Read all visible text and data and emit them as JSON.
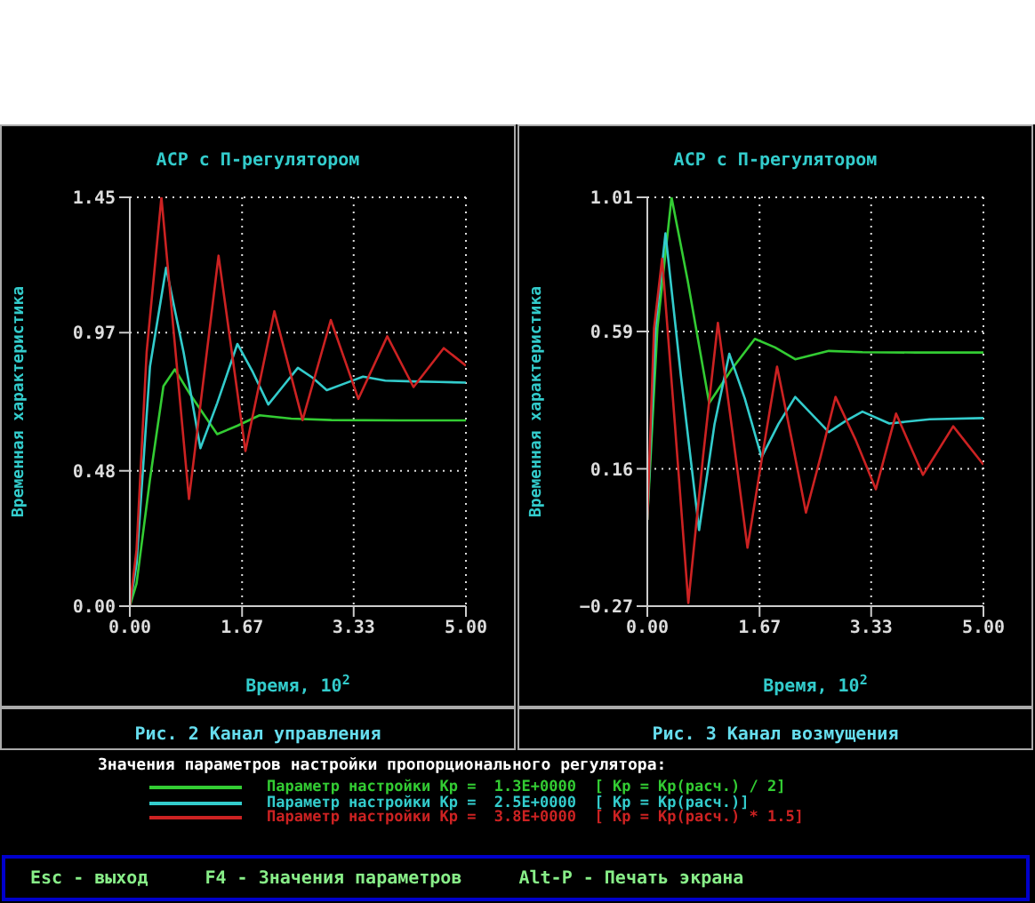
{
  "chart_data": [
    {
      "type": "line",
      "title": "АСР с П-регулятором",
      "xlabel": "Время, 10$^{2}$",
      "ylabel": "Временная характеристика",
      "xlim": [
        0,
        5
      ],
      "xticks": [
        {
          "value": 0,
          "label": "0.00"
        },
        {
          "value": 1.67,
          "label": "1.67"
        },
        {
          "value": 3.33,
          "label": "3.33"
        },
        {
          "value": 5,
          "label": "5.00"
        }
      ],
      "ylim": [
        0,
        1.45
      ],
      "yticks": [
        {
          "value": 0,
          "label": "0.00"
        },
        {
          "value": 0.48,
          "label": "0.48"
        },
        {
          "value": 0.97,
          "label": "0.97"
        },
        {
          "value": 1.45,
          "label": "1.45"
        }
      ],
      "grid": true,
      "legend": "bottom",
      "legend_title": "Значения параметров настройки пропорционального регулятора:",
      "annotations": [
        "Рис. 2 Канал управления"
      ],
      "series": [
        {
          "name": "Параметр настройки Kp =  1.3E+0000  [ Kp = Kp(расч.) / 2]",
          "color": "#33cc33",
          "x": [
            0,
            0.1,
            0.3,
            0.5,
            0.67,
            0.9,
            1.3,
            1.6,
            1.93,
            2.4,
            3,
            4,
            5
          ],
          "values": [
            0,
            0.08,
            0.45,
            0.78,
            0.84,
            0.75,
            0.61,
            0.64,
            0.677,
            0.665,
            0.66,
            0.659,
            0.659
          ]
        },
        {
          "name": "Параметр настройки Kp =  2.5E+0000  [ Kp = Kp(расч.)]",
          "color": "#33cccc",
          "x": [
            0,
            0.1,
            0.3,
            0.54,
            0.8,
            1.05,
            1.3,
            1.6,
            1.83,
            2.06,
            2.28,
            2.5,
            2.72,
            2.93,
            3.2,
            3.47,
            3.8,
            4.2,
            4.6,
            5
          ],
          "values": [
            0,
            0.15,
            0.85,
            1.2,
            0.9,
            0.56,
            0.72,
            0.93,
            0.83,
            0.715,
            0.78,
            0.845,
            0.81,
            0.766,
            0.79,
            0.814,
            0.8,
            0.797,
            0.795,
            0.793
          ]
        },
        {
          "name": "Параметр настройки Kp =  3.8E+0000  [ Kp = Kp(расч.) * 1.5]",
          "color": "#cc2222",
          "x": [
            0,
            0.1,
            0.25,
            0.47,
            0.88,
            1.32,
            1.72,
            2.15,
            2.57,
            2.99,
            3.4,
            3.83,
            4.22,
            4.67,
            5
          ],
          "values": [
            0,
            0.2,
            0.9,
            1.45,
            0.38,
            1.243,
            0.55,
            1.046,
            0.66,
            1.015,
            0.735,
            0.957,
            0.777,
            0.915,
            0.853
          ]
        }
      ]
    },
    {
      "type": "line",
      "title": "АСР с П-регулятором",
      "xlabel": "Время, 10$^{2}$",
      "ylabel": "Временная характеристика",
      "xlim": [
        0,
        5
      ],
      "xticks": [
        {
          "value": 0,
          "label": "0.00"
        },
        {
          "value": 1.67,
          "label": "1.67"
        },
        {
          "value": 3.33,
          "label": "3.33"
        },
        {
          "value": 5,
          "label": "5.00"
        }
      ],
      "ylim": [
        -0.27,
        1.01
      ],
      "yticks": [
        {
          "value": -0.27,
          "label": "−0.27"
        },
        {
          "value": 0.16,
          "label": "0.16"
        },
        {
          "value": 0.59,
          "label": "0.59"
        },
        {
          "value": 1.01,
          "label": "1.01"
        }
      ],
      "grid": true,
      "annotations": [
        "Рис. 3 Канал возмущения",
        "Esc - выход",
        "F4 - Значения параметров",
        "Alt-P - Печать экрана"
      ],
      "series": [
        {
          "color": "#33cc33",
          "x": [
            0,
            0.15,
            0.36,
            0.6,
            0.92,
            1.25,
            1.6,
            1.9,
            2.2,
            2.7,
            3.2,
            4,
            5
          ],
          "values": [
            0,
            0.6,
            1.01,
            0.75,
            0.366,
            0.47,
            0.567,
            0.54,
            0.503,
            0.529,
            0.525,
            0.524,
            0.524
          ]
        },
        {
          "color": "#33cccc",
          "x": [
            0,
            0.12,
            0.27,
            0.5,
            0.77,
            1,
            1.22,
            1.45,
            1.7,
            1.95,
            2.2,
            2.45,
            2.7,
            2.95,
            3.2,
            3.6,
            4.2,
            5
          ],
          "values": [
            0,
            0.6,
            0.897,
            0.45,
            -0.032,
            0.3,
            0.52,
            0.38,
            0.196,
            0.3,
            0.385,
            0.33,
            0.275,
            0.31,
            0.339,
            0.302,
            0.315,
            0.319
          ]
        },
        {
          "color": "#cc2222",
          "x": [
            0,
            0.1,
            0.22,
            0.41,
            0.61,
            0.83,
            1.05,
            1.27,
            1.49,
            1.71,
            1.93,
            2.15,
            2.36,
            2.58,
            2.8,
            3.1,
            3.4,
            3.7,
            4.1,
            4.55,
            5
          ],
          "values": [
            0,
            0.6,
            0.818,
            0.3,
            -0.26,
            0.2,
            0.617,
            0.27,
            -0.087,
            0.2,
            0.48,
            0.25,
            0.023,
            0.2,
            0.385,
            0.25,
            0.096,
            0.333,
            0.141,
            0.293,
            0.173
          ]
        }
      ]
    }
  ]
}
